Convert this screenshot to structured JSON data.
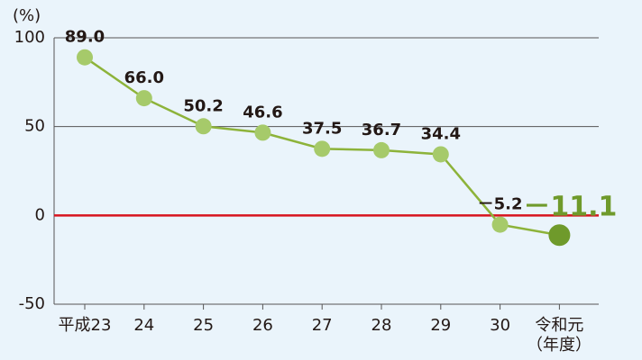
{
  "chart_data": {
    "type": "line",
    "y_label": "(%)",
    "x_label": "（年度）",
    "categories": [
      "平成23",
      "24",
      "25",
      "26",
      "27",
      "28",
      "29",
      "30",
      "令和元"
    ],
    "series": [
      {
        "name": "",
        "color": "#8db33a",
        "marker_color": "#a6ca6a",
        "values": [
          89.0,
          66.0,
          50.2,
          46.6,
          37.5,
          36.7,
          34.4,
          -5.2,
          -11.1
        ],
        "value_labels": [
          "89.0",
          "66.0",
          "50.2",
          "46.6",
          "37.5",
          "36.7",
          "34.4",
          "－5.2",
          "－11.1"
        ]
      }
    ],
    "highlight": {
      "index": 8,
      "color": "#6f9a2b"
    },
    "ylim": [
      -50,
      100
    ],
    "yticks": [
      -50,
      0,
      50,
      100
    ],
    "grid": true,
    "grid_color": "#555555",
    "zero_line_color": "#d7141e"
  }
}
